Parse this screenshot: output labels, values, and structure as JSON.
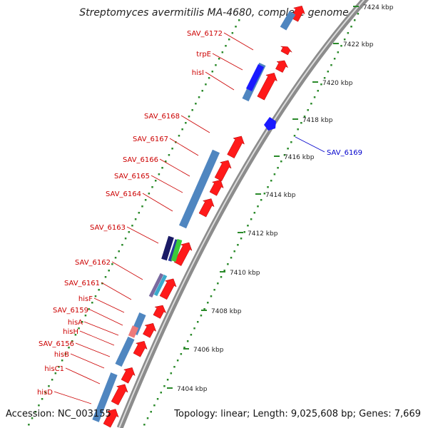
{
  "title": "Streptomyces avermitilis MA-4680, complete genome",
  "footer": {
    "accession": "Accession: NC_003155",
    "summary": "Topology: linear; Length: 9,025,608 bp; Genes: 7,669"
  },
  "colors": {
    "forward_gene": "#ff1a1a",
    "gene_label": "#cc0000",
    "highlight_label": "#0000cc",
    "highlight_gene": "#1a1aff",
    "cds_box": "#4f86c0",
    "tick": "#2a8a2a",
    "backbone": "#8c8c8c"
  },
  "scale": {
    "unit": "kbp",
    "major_ticks": [
      {
        "label": "7424 kbp"
      },
      {
        "label": "7422 kbp"
      },
      {
        "label": "7420 kbp"
      },
      {
        "label": "7418 kbp"
      },
      {
        "label": "7416 kbp"
      },
      {
        "label": "7414 kbp"
      },
      {
        "label": "7412 kbp"
      },
      {
        "label": "7410 kbp"
      },
      {
        "label": "7408 kbp"
      },
      {
        "label": "7406 kbp"
      },
      {
        "label": "7404 kbp"
      }
    ]
  },
  "gene_labels": [
    {
      "name": "SAV_6172"
    },
    {
      "name": "trpE"
    },
    {
      "name": "hisI"
    },
    {
      "name": "SAV_6168"
    },
    {
      "name": "SAV_6167"
    },
    {
      "name": "SAV_6166"
    },
    {
      "name": "SAV_6165"
    },
    {
      "name": "SAV_6164"
    },
    {
      "name": "SAV_6163"
    },
    {
      "name": "SAV_6162"
    },
    {
      "name": "SAV_6161"
    },
    {
      "name": "hisF"
    },
    {
      "name": "SAV_6159"
    },
    {
      "name": "hisA"
    },
    {
      "name": "hisH"
    },
    {
      "name": "SAV_6156"
    },
    {
      "name": "hisB"
    },
    {
      "name": "hisC1"
    },
    {
      "name": "hisD"
    }
  ],
  "highlight_label": {
    "name": "SAV_6169"
  }
}
